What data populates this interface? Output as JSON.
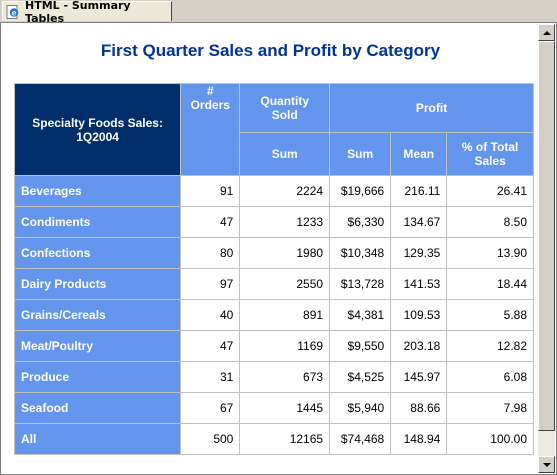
{
  "window": {
    "tab_title": "HTML - Summary Tables",
    "tab_icon": "ie-page-icon"
  },
  "report": {
    "title": "First Quarter Sales and Profit by Category",
    "corner_label": "Specialty Foods Sales: 1Q2004",
    "headers": {
      "orders": "# Orders",
      "quantity": "Quantity Sold",
      "profit": "Profit",
      "quantity_sum": "Sum",
      "profit_sum": "Sum",
      "profit_mean": "Mean",
      "profit_pct": "% of Total Sales"
    },
    "rows": [
      {
        "category": "Beverages",
        "orders": "91",
        "qty": "2224",
        "sum": "$19,666",
        "mean": "216.11",
        "pct": "26.41"
      },
      {
        "category": "Condiments",
        "orders": "47",
        "qty": "1233",
        "sum": "$6,330",
        "mean": "134.67",
        "pct": "8.50"
      },
      {
        "category": "Confections",
        "orders": "80",
        "qty": "1980",
        "sum": "$10,348",
        "mean": "129.35",
        "pct": "13.90"
      },
      {
        "category": "Dairy Products",
        "orders": "97",
        "qty": "2550",
        "sum": "$13,728",
        "mean": "141.53",
        "pct": "18.44"
      },
      {
        "category": "Grains/Cereals",
        "orders": "40",
        "qty": "891",
        "sum": "$4,381",
        "mean": "109.53",
        "pct": "5.88"
      },
      {
        "category": "Meat/Poultry",
        "orders": "47",
        "qty": "1169",
        "sum": "$9,550",
        "mean": "203.18",
        "pct": "12.82"
      },
      {
        "category": "Produce",
        "orders": "31",
        "qty": "673",
        "sum": "$4,525",
        "mean": "145.97",
        "pct": "6.08"
      },
      {
        "category": "Seafood",
        "orders": "67",
        "qty": "1445",
        "sum": "$5,940",
        "mean": "88.66",
        "pct": "7.98"
      },
      {
        "category": "All",
        "orders": "500",
        "qty": "12165",
        "sum": "$74,468",
        "mean": "148.94",
        "pct": "100.00"
      }
    ]
  },
  "colors": {
    "header_bg": "#6495ed",
    "corner_bg": "#002e6b",
    "title": "#003399"
  }
}
